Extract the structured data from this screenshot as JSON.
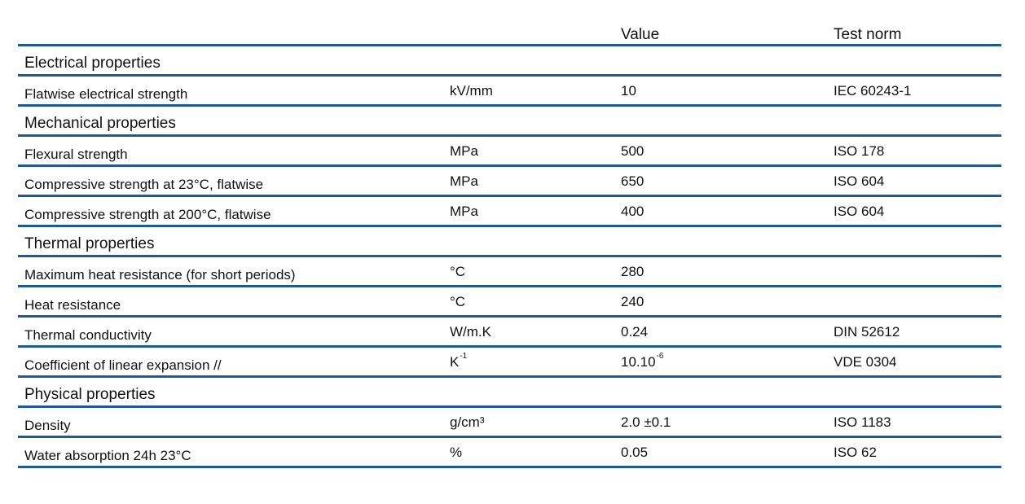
{
  "header": {
    "value_label": "Value",
    "norm_label": "Test norm"
  },
  "sections": [
    {
      "title": "Electrical properties",
      "rows": [
        {
          "name": "Flatwise electrical strength",
          "unit": "kV/mm",
          "unit_sup": "",
          "value": "10",
          "value_sup": "",
          "norm": "IEC 60243-1"
        }
      ]
    },
    {
      "title": "Mechanical properties",
      "rows": [
        {
          "name": "Flexural strength",
          "unit": "MPa",
          "unit_sup": "",
          "value": "500",
          "value_sup": "",
          "norm": "ISO 178"
        },
        {
          "name": "Compressive strength at 23°C, flatwise",
          "unit": "MPa",
          "unit_sup": "",
          "value": "650",
          "value_sup": "",
          "norm": "ISO 604"
        },
        {
          "name": "Compressive strength at 200°C, flatwise",
          "unit": "MPa",
          "unit_sup": "",
          "value": "400",
          "value_sup": "",
          "norm": "ISO 604"
        }
      ]
    },
    {
      "title": "Thermal properties",
      "rows": [
        {
          "name": "Maximum heat resistance (for short periods)",
          "unit": "°C",
          "unit_sup": "",
          "value": "280",
          "value_sup": "",
          "norm": ""
        },
        {
          "name": "Heat resistance",
          "unit": "°C",
          "unit_sup": "",
          "value": "240",
          "value_sup": "",
          "norm": ""
        },
        {
          "name": "Thermal conductivity",
          "unit": "W/m.K",
          "unit_sup": "",
          "value": "0.24",
          "value_sup": "",
          "norm": "DIN 52612"
        },
        {
          "name": "Coefficient of linear expansion //",
          "unit": "K",
          "unit_sup": "-1",
          "value": "10.10",
          "value_sup": "-6",
          "norm": "VDE 0304"
        }
      ]
    },
    {
      "title": "Physical properties",
      "rows": [
        {
          "name": "Density",
          "unit": "g/cm³",
          "unit_sup": "",
          "value": "2.0 ±0.1",
          "value_sup": "",
          "norm": "ISO 1183"
        },
        {
          "name": "Water absorption 24h 23°C",
          "unit": "%",
          "unit_sup": "",
          "value": "0.05",
          "value_sup": "",
          "norm": "ISO 62"
        }
      ]
    }
  ],
  "colors": {
    "rule": "#1f5a96",
    "text": "#111111"
  }
}
